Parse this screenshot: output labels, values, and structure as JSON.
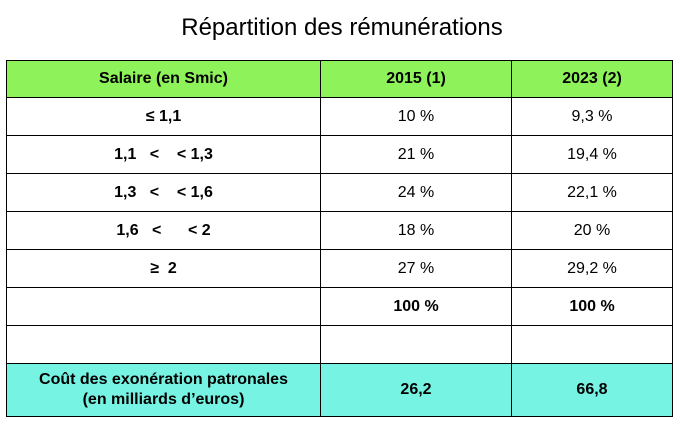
{
  "title": "Répartition des rémunérations",
  "table": {
    "headers": [
      "Salaire (en Smic)",
      "2015 (1)",
      "2023 (2)"
    ],
    "rows": [
      {
        "range": "≤ 1,1",
        "y2015": "10 %",
        "y2023": "9,3 %"
      },
      {
        "range": "1,1   <    < 1,3",
        "y2015": "21 %",
        "y2023": "19,4 %"
      },
      {
        "range": "1,3   <    < 1,6",
        "y2015": "24 %",
        "y2023": "22,1 %"
      },
      {
        "range": "1,6   <      < 2",
        "y2015": "18 %",
        "y2023": "20 %"
      },
      {
        "range": "≥  2",
        "y2015": "27 %",
        "y2023": "29,2 %"
      },
      {
        "range": "",
        "y2015": "100 %",
        "y2023": "100 %"
      },
      {
        "range": "",
        "y2015": "",
        "y2023": ""
      }
    ],
    "footer": {
      "label_line1": "Coût des exonération patronales",
      "label_line2": "(en milliards d’euros)",
      "y2015": "26,2",
      "y2023": "66,8"
    }
  },
  "colors": {
    "header_bg": "#8ef25a",
    "footer_bg": "#76f3e3"
  }
}
